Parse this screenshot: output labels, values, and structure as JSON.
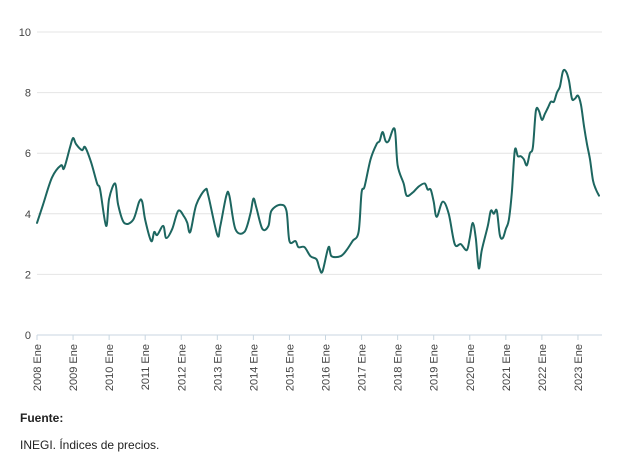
{
  "chart_data": {
    "type": "line",
    "title": "",
    "xlabel": "",
    "ylabel": "",
    "ylim": [
      0,
      10
    ],
    "yticks": [
      0,
      2,
      4,
      6,
      8,
      10
    ],
    "xlim": [
      "2008-01",
      "2023-09"
    ],
    "grid": "horizontal",
    "legend": "none",
    "colors": {
      "line": "#1d6660",
      "grid": "#e4e4e4",
      "axis": "#c8d6e0",
      "text": "#444444"
    },
    "x_tick_labels": [
      {
        "label": "2008 Ene",
        "date": "2008-01"
      },
      {
        "label": "2009 Ene",
        "date": "2009-01"
      },
      {
        "label": "2010 Ene",
        "date": "2010-01"
      },
      {
        "label": "2011 Ene",
        "date": "2011-01"
      },
      {
        "label": "2012 Ene",
        "date": "2012-01"
      },
      {
        "label": "2013 Ene",
        "date": "2013-01"
      },
      {
        "label": "2014 Ene",
        "date": "2014-01"
      },
      {
        "label": "2015 Ene",
        "date": "2015-01"
      },
      {
        "label": "2016 Ene",
        "date": "2016-01"
      },
      {
        "label": "2017 Ene",
        "date": "2017-01"
      },
      {
        "label": "2018 Ene",
        "date": "2018-01"
      },
      {
        "label": "2019 Ene",
        "date": "2019-01"
      },
      {
        "label": "2020 Ene",
        "date": "2020-01"
      },
      {
        "label": "2021 Ene",
        "date": "2021-01"
      },
      {
        "label": "2022 Ene",
        "date": "2022-01"
      },
      {
        "label": "2023 Ene",
        "date": "2023-01"
      }
    ],
    "series": [
      {
        "name": "",
        "points": [
          [
            "2008-01",
            3.7
          ],
          [
            "2008-03",
            4.3
          ],
          [
            "2008-06",
            5.2
          ],
          [
            "2008-09",
            5.6
          ],
          [
            "2008-10",
            5.5
          ],
          [
            "2008-12",
            6.2
          ],
          [
            "2009-01",
            6.5
          ],
          [
            "2009-02",
            6.3
          ],
          [
            "2009-04",
            6.1
          ],
          [
            "2009-05",
            6.2
          ],
          [
            "2009-07",
            5.7
          ],
          [
            "2009-09",
            5.0
          ],
          [
            "2009-10",
            4.8
          ],
          [
            "2009-12",
            3.6
          ],
          [
            "2010-01",
            4.5
          ],
          [
            "2010-03",
            5.0
          ],
          [
            "2010-04",
            4.3
          ],
          [
            "2010-06",
            3.7
          ],
          [
            "2010-09",
            3.8
          ],
          [
            "2010-11",
            4.4
          ],
          [
            "2010-12",
            4.4
          ],
          [
            "2011-01",
            3.8
          ],
          [
            "2011-03",
            3.1
          ],
          [
            "2011-04",
            3.4
          ],
          [
            "2011-05",
            3.3
          ],
          [
            "2011-07",
            3.6
          ],
          [
            "2011-08",
            3.2
          ],
          [
            "2011-10",
            3.5
          ],
          [
            "2011-12",
            4.1
          ],
          [
            "2012-02",
            3.9
          ],
          [
            "2012-03",
            3.7
          ],
          [
            "2012-04",
            3.4
          ],
          [
            "2012-06",
            4.3
          ],
          [
            "2012-09",
            4.8
          ],
          [
            "2012-10",
            4.6
          ],
          [
            "2013-01",
            3.3
          ],
          [
            "2013-02",
            3.6
          ],
          [
            "2013-04",
            4.6
          ],
          [
            "2013-05",
            4.6
          ],
          [
            "2013-07",
            3.5
          ],
          [
            "2013-10",
            3.4
          ],
          [
            "2013-12",
            4.0
          ],
          [
            "2014-01",
            4.5
          ],
          [
            "2014-02",
            4.2
          ],
          [
            "2014-04",
            3.5
          ],
          [
            "2014-06",
            3.6
          ],
          [
            "2014-07",
            4.1
          ],
          [
            "2014-10",
            4.3
          ],
          [
            "2014-12",
            4.1
          ],
          [
            "2015-01",
            3.1
          ],
          [
            "2015-03",
            3.1
          ],
          [
            "2015-04",
            2.9
          ],
          [
            "2015-06",
            2.9
          ],
          [
            "2015-08",
            2.6
          ],
          [
            "2015-10",
            2.5
          ],
          [
            "2015-11",
            2.2
          ],
          [
            "2015-12",
            2.1
          ],
          [
            "2016-02",
            2.9
          ],
          [
            "2016-03",
            2.6
          ],
          [
            "2016-06",
            2.6
          ],
          [
            "2016-08",
            2.8
          ],
          [
            "2016-10",
            3.1
          ],
          [
            "2016-12",
            3.4
          ],
          [
            "2017-01",
            4.7
          ],
          [
            "2017-02",
            4.9
          ],
          [
            "2017-04",
            5.8
          ],
          [
            "2017-06",
            6.3
          ],
          [
            "2017-07",
            6.4
          ],
          [
            "2017-08",
            6.7
          ],
          [
            "2017-09",
            6.4
          ],
          [
            "2017-10",
            6.4
          ],
          [
            "2017-12",
            6.8
          ],
          [
            "2018-01",
            5.6
          ],
          [
            "2018-03",
            5.0
          ],
          [
            "2018-04",
            4.6
          ],
          [
            "2018-06",
            4.7
          ],
          [
            "2018-08",
            4.9
          ],
          [
            "2018-10",
            5.0
          ],
          [
            "2018-11",
            4.8
          ],
          [
            "2018-12",
            4.8
          ],
          [
            "2019-01",
            4.4
          ],
          [
            "2019-02",
            3.9
          ],
          [
            "2019-04",
            4.4
          ],
          [
            "2019-06",
            4.0
          ],
          [
            "2019-08",
            3.0
          ],
          [
            "2019-10",
            3.0
          ],
          [
            "2019-12",
            2.8
          ],
          [
            "2020-01",
            3.2
          ],
          [
            "2020-02",
            3.7
          ],
          [
            "2020-03",
            3.2
          ],
          [
            "2020-04",
            2.2
          ],
          [
            "2020-05",
            2.8
          ],
          [
            "2020-07",
            3.6
          ],
          [
            "2020-08",
            4.1
          ],
          [
            "2020-09",
            4.0
          ],
          [
            "2020-10",
            4.1
          ],
          [
            "2020-11",
            3.3
          ],
          [
            "2020-12",
            3.2
          ],
          [
            "2021-01",
            3.5
          ],
          [
            "2021-02",
            3.8
          ],
          [
            "2021-03",
            4.7
          ],
          [
            "2021-04",
            6.1
          ],
          [
            "2021-05",
            5.9
          ],
          [
            "2021-06",
            5.9
          ],
          [
            "2021-07",
            5.8
          ],
          [
            "2021-08",
            5.6
          ],
          [
            "2021-09",
            6.0
          ],
          [
            "2021-10",
            6.2
          ],
          [
            "2021-11",
            7.4
          ],
          [
            "2021-12",
            7.4
          ],
          [
            "2022-01",
            7.1
          ],
          [
            "2022-02",
            7.3
          ],
          [
            "2022-03",
            7.5
          ],
          [
            "2022-04",
            7.7
          ],
          [
            "2022-05",
            7.7
          ],
          [
            "2022-06",
            8.0
          ],
          [
            "2022-07",
            8.2
          ],
          [
            "2022-08",
            8.7
          ],
          [
            "2022-09",
            8.7
          ],
          [
            "2022-10",
            8.4
          ],
          [
            "2022-11",
            7.8
          ],
          [
            "2022-12",
            7.8
          ],
          [
            "2023-01",
            7.9
          ],
          [
            "2023-02",
            7.6
          ],
          [
            "2023-03",
            6.9
          ],
          [
            "2023-04",
            6.3
          ],
          [
            "2023-05",
            5.8
          ],
          [
            "2023-06",
            5.1
          ],
          [
            "2023-07",
            4.8
          ],
          [
            "2023-08",
            4.6
          ]
        ]
      }
    ]
  },
  "footer": {
    "source_heading": "Fuente:",
    "source_text": "INEGI. Índices de precios."
  }
}
